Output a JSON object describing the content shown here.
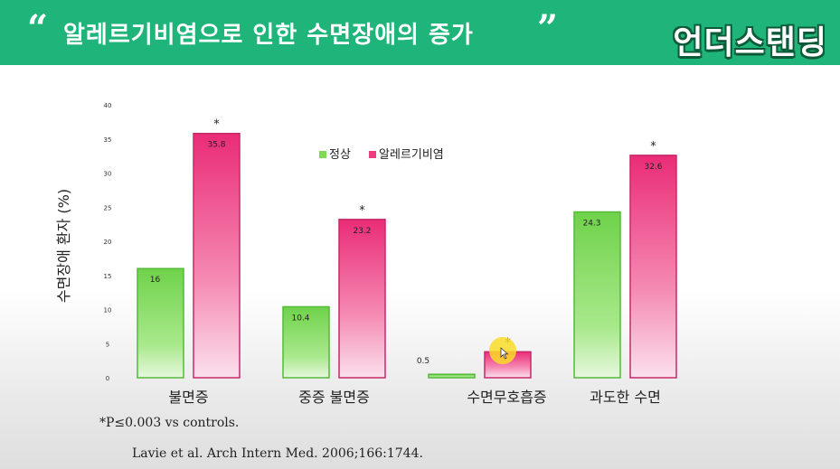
{
  "header": {
    "title": "알레르기비염으로 인한 수면장애의 증가",
    "quote_open": "“",
    "quote_close": "”",
    "logo": "언더스탠딩",
    "bg_color": "#1fb57a"
  },
  "chart_data": {
    "type": "bar",
    "ylabel": "수면장애 환자 (%)",
    "ylim": [
      0,
      40
    ],
    "yticks": [
      0,
      5,
      10,
      15,
      20,
      25,
      30,
      35,
      40
    ],
    "categories": [
      "불면증",
      "중증 불면증",
      "수면무호흡증",
      "과도한 수면"
    ],
    "series": [
      {
        "name": "정상",
        "values": [
          16,
          10.4,
          0.5,
          24.3
        ],
        "color": "#7ed957",
        "labels": [
          "16",
          "10.4",
          "0.5",
          "24.3"
        ]
      },
      {
        "name": "알레르기비염",
        "values": [
          35.8,
          23.2,
          3.8,
          32.6
        ],
        "color": "#ec3d80",
        "labels": [
          "35.8",
          "23.2",
          "",
          "32.6"
        ]
      }
    ],
    "significance_marker": "*",
    "legend_position": "top-center",
    "grid": false
  },
  "footnote": "*P≤0.003 vs controls.",
  "citation": "Lavie et al. Arch Intern Med. 2006;166:1744."
}
